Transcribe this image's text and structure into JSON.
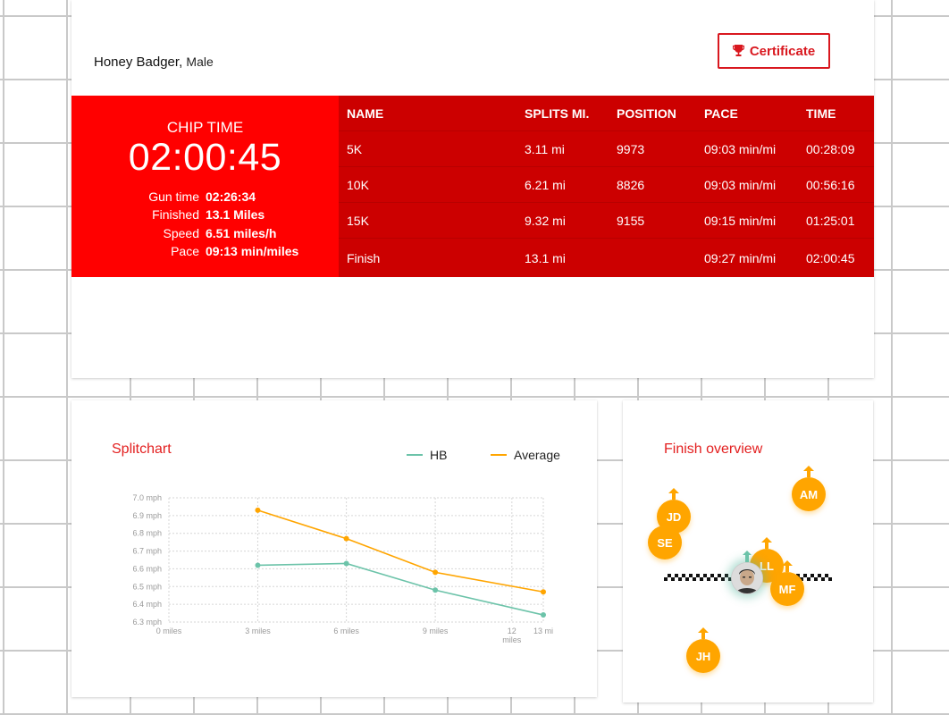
{
  "athlete": {
    "name": "Honey Badger",
    "gender": "Male"
  },
  "certificate": {
    "label": "Certificate",
    "icon": "trophy-icon"
  },
  "chip": {
    "label": "CHIP TIME",
    "value": "02:00:45",
    "stats": [
      {
        "key": "Gun time",
        "value": "02:26:34"
      },
      {
        "key": "Finished",
        "value": "13.1 Miles"
      },
      {
        "key": "Speed",
        "value": "6.51 miles/h"
      },
      {
        "key": "Pace",
        "value": "09:13 min/miles"
      }
    ]
  },
  "splits": {
    "headers": [
      "NAME",
      "SPLITS MI.",
      "POSITION",
      "PACE",
      "TIME"
    ],
    "rows": [
      [
        "5K",
        "3.11 mi",
        "9973",
        "09:03 min/mi",
        "00:28:09"
      ],
      [
        "10K",
        "6.21 mi",
        "8826",
        "09:03 min/mi",
        "00:56:16"
      ],
      [
        "15K",
        "9.32 mi",
        "9155",
        "09:15 min/mi",
        "01:25:01"
      ],
      [
        "Finish",
        "13.1 mi",
        "",
        "09:27 min/mi",
        "02:00:45"
      ]
    ]
  },
  "splitchart": {
    "title": "Splitchart",
    "legend": [
      {
        "name": "HB",
        "color": "#6cc3a9"
      },
      {
        "name": "Average",
        "color": "#ffa500"
      }
    ]
  },
  "chart_data": {
    "type": "line",
    "title": "Splitchart",
    "x": [
      3.11,
      6.21,
      9.32,
      13.1
    ],
    "x_ticks": [
      {
        "value": 0,
        "label": "0 miles"
      },
      {
        "value": 3.11,
        "label": "3 miles"
      },
      {
        "value": 6.21,
        "label": "6 miles"
      },
      {
        "value": 9.32,
        "label": "9 miles"
      },
      {
        "value": 12,
        "label": "12 miles"
      },
      {
        "value": 13.1,
        "label": "13 mi"
      }
    ],
    "y_ticks": [
      "6.3 mph",
      "6.4 mph",
      "6.5 mph",
      "6.6 mph",
      "6.7 mph",
      "6.8 mph",
      "6.9 mph",
      "7.0 mph"
    ],
    "ylim": [
      6.3,
      7.0
    ],
    "xlim": [
      0,
      13.1
    ],
    "series": [
      {
        "name": "HB",
        "color": "#6cc3a9",
        "values": [
          6.62,
          6.63,
          6.48,
          6.34
        ]
      },
      {
        "name": "Average",
        "color": "#ffa500",
        "values": [
          6.93,
          6.77,
          6.58,
          6.47
        ]
      }
    ],
    "grid": true,
    "legend_position": "top-right"
  },
  "finish": {
    "title": "Finish overview",
    "runners": [
      {
        "initials": "AM"
      },
      {
        "initials": "JD"
      },
      {
        "initials": "SE"
      },
      {
        "initials": "LL"
      },
      {
        "initials": "MF"
      },
      {
        "initials": "JH"
      }
    ],
    "me_avatar": "user-avatar"
  },
  "colors": {
    "chip_panel": "#ff0000",
    "splits_table": "#cc0000",
    "accent_red": "#d9181f",
    "marker_orange": "#ffa500",
    "hb_teal": "#6cc3a9"
  }
}
